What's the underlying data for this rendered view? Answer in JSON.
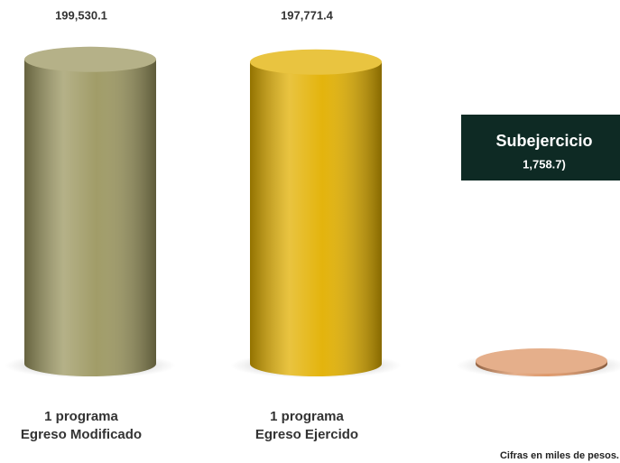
{
  "chart_data": {
    "type": "cylinder",
    "categories": [
      "Egreso Modificado",
      "Egreso Ejercido",
      "Subejercicio"
    ],
    "sublabels": [
      "1 programa",
      "1 programa",
      null
    ],
    "values": [
      199530.1,
      197771.4,
      1758.7
    ],
    "value_labels": [
      "199,530.1",
      "197,771.4",
      "1,758.7)"
    ],
    "colors": [
      "#9c9760",
      "#e2b000",
      "#dc9464"
    ],
    "ylim": [
      0,
      200000
    ],
    "note": "Cifras en miles de pesos."
  }
}
